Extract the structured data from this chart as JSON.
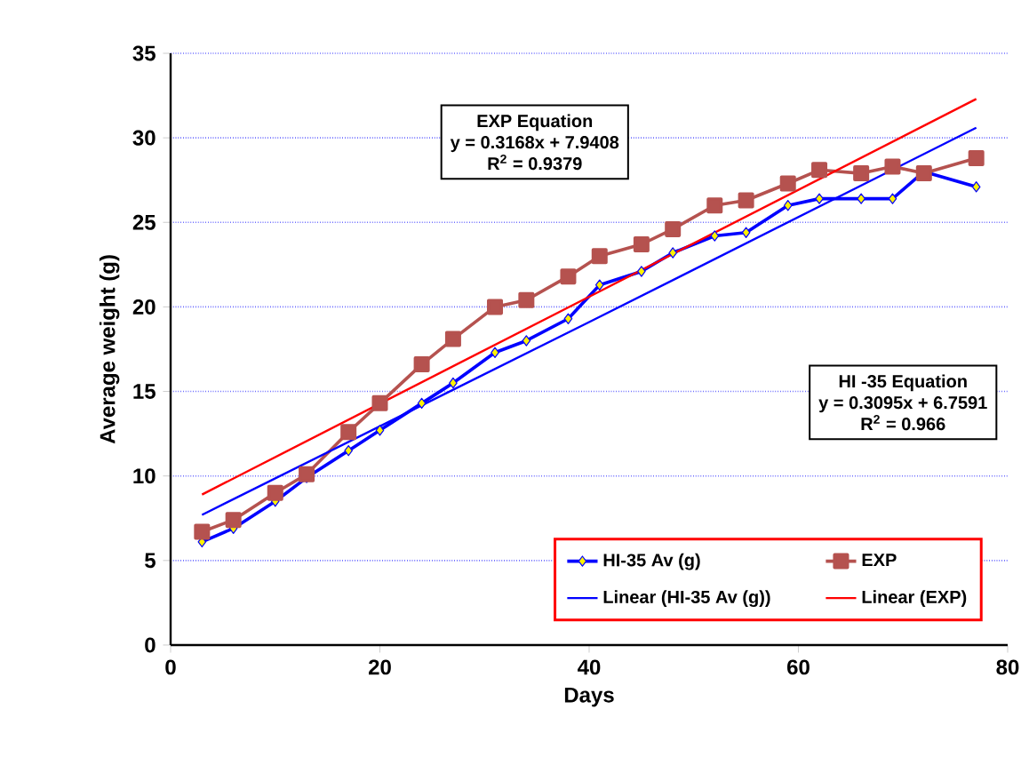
{
  "chart_data": {
    "type": "line",
    "xlabel": "Days",
    "ylabel": "Average weight (g)",
    "xlim": [
      0,
      80
    ],
    "xticks": [
      0,
      20,
      40,
      60,
      80
    ],
    "ylim": [
      0,
      35
    ],
    "yticks": [
      0,
      5,
      10,
      15,
      20,
      25,
      30,
      35
    ],
    "grid": "y",
    "legend": "bottom right",
    "annotations": [
      "EXP Equation",
      "y = 0.3168x + 7.9408",
      "R$^{2}$ = 0.9379",
      "HI -35  Equation",
      "y = 0.3095x + 6.7591",
      "R$^{2}$ = 0.966"
    ],
    "x": [
      3,
      6,
      10,
      13,
      17,
      20,
      24,
      27,
      31,
      34,
      38,
      41,
      45,
      48,
      52,
      55,
      59,
      62,
      66,
      69,
      72,
      77
    ],
    "series": [
      {
        "name": "HI-35 Av (g)",
        "color": "#0000ff",
        "marker": "diamond",
        "values": [
          6.1,
          6.9,
          8.5,
          9.9,
          11.5,
          12.7,
          14.3,
          15.5,
          17.3,
          18.0,
          19.3,
          21.3,
          22.1,
          23.2,
          24.2,
          24.4,
          26.0,
          26.4,
          26.4,
          26.4,
          28.0,
          27.1
        ]
      },
      {
        "name": "EXP",
        "color": "#b5524f",
        "marker": "square",
        "values": [
          6.7,
          7.4,
          9.0,
          10.1,
          12.6,
          14.3,
          16.6,
          18.1,
          20.0,
          20.4,
          21.8,
          23.0,
          23.7,
          24.6,
          26.0,
          26.3,
          27.3,
          28.1,
          27.9,
          28.3,
          27.9,
          28.8
        ]
      },
      {
        "name": "Linear (HI-35 Av (g))",
        "color": "#0000ff",
        "marker": "none",
        "x": [
          3,
          40,
          77
        ],
        "values": [
          7.7,
          19.1,
          30.6
        ]
      },
      {
        "name": "Linear (EXP)",
        "color": "#ff0000",
        "marker": "none",
        "x": [
          3,
          40,
          77
        ],
        "values": [
          8.9,
          20.6,
          32.3
        ]
      }
    ]
  }
}
